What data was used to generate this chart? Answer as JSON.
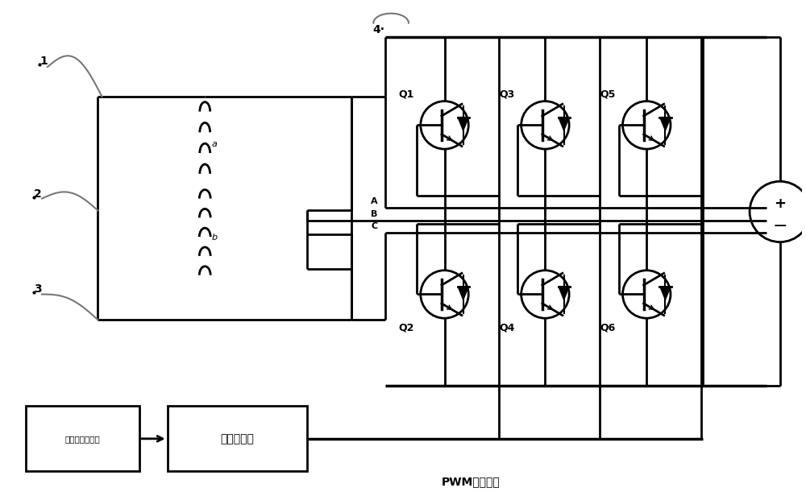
{
  "bg_color": "#ffffff",
  "line_color": "#000000",
  "gray_color": "#777777",
  "label_1": "1",
  "label_2": "2",
  "label_3": "3",
  "label_4": "4·",
  "label_A": "A",
  "label_B": "B",
  "label_C": "C",
  "label_Q1": "Q1",
  "label_Q2": "Q2",
  "label_Q3": "Q3",
  "label_Q4": "Q4",
  "label_Q5": "Q5",
  "label_Q6": "Q6",
  "label_a": "a",
  "label_b": "b",
  "label_sensor": "转子位置传感器",
  "label_controller": "控制器程序",
  "label_pwm": "PWM控制信号",
  "label_plus": "+",
  "label_minus": "−"
}
